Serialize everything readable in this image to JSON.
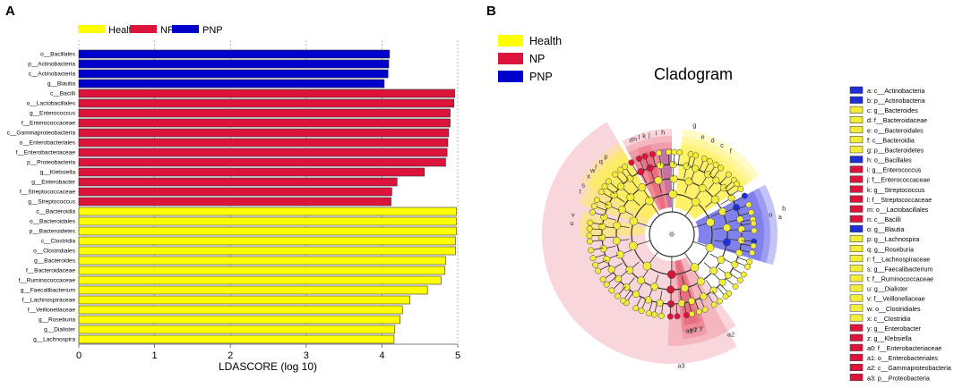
{
  "panel_a": {
    "label": "A"
  },
  "panel_b": {
    "label": "B"
  },
  "colors": {
    "Health": "#ffff00",
    "NP": "#dc143c",
    "PNP": "#0000cd"
  },
  "chart_data": [
    {
      "type": "bar",
      "orientation": "horizontal",
      "title": "",
      "xlabel": "LDASCORE (log 10)",
      "ylabel": "",
      "xlim": [
        0,
        5
      ],
      "xticks": [
        "0",
        "1",
        "2",
        "3",
        "4",
        "5"
      ],
      "grid": "vertical dashed",
      "legend": [
        {
          "name": "Health",
          "color": "#ffff00"
        },
        {
          "name": "NP",
          "color": "#dc143c"
        },
        {
          "name": "PNP",
          "color": "#0000cd"
        }
      ],
      "bars": [
        {
          "label": "o__Bacillales",
          "value": 4.1,
          "group": "PNP"
        },
        {
          "label": "p__Actinobacteria",
          "value": 4.09,
          "group": "PNP"
        },
        {
          "label": "c__Actinobacteria",
          "value": 4.08,
          "group": "PNP"
        },
        {
          "label": "g__Blautia",
          "value": 4.03,
          "group": "PNP"
        },
        {
          "label": "c__Bacilli",
          "value": 4.96,
          "group": "NP"
        },
        {
          "label": "o__Lactobacillales",
          "value": 4.95,
          "group": "NP"
        },
        {
          "label": "g__Enterococcus",
          "value": 4.9,
          "group": "NP"
        },
        {
          "label": "f__Enterococcaceae",
          "value": 4.9,
          "group": "NP"
        },
        {
          "label": "c__Gammaproteobacteria",
          "value": 4.88,
          "group": "NP"
        },
        {
          "label": "o__Enterobacteriales",
          "value": 4.87,
          "group": "NP"
        },
        {
          "label": "f__Enterobacteriaceae",
          "value": 4.86,
          "group": "NP"
        },
        {
          "label": "p__Proteobacteria",
          "value": 4.84,
          "group": "NP"
        },
        {
          "label": "g__Klebsiella",
          "value": 4.56,
          "group": "NP"
        },
        {
          "label": "g__Enterobacter",
          "value": 4.2,
          "group": "NP"
        },
        {
          "label": "f__Streptococcaceae",
          "value": 4.13,
          "group": "NP"
        },
        {
          "label": "g__Streptococcus",
          "value": 4.12,
          "group": "NP"
        },
        {
          "label": "c__Bacteroidia",
          "value": 4.98,
          "group": "Health"
        },
        {
          "label": "o__Bacteroidales",
          "value": 4.98,
          "group": "Health"
        },
        {
          "label": "p__Bacteroidetes",
          "value": 4.98,
          "group": "Health"
        },
        {
          "label": "c__Clostridia",
          "value": 4.97,
          "group": "Health"
        },
        {
          "label": "o__Clostridiales",
          "value": 4.97,
          "group": "Health"
        },
        {
          "label": "g__Bacteroides",
          "value": 4.84,
          "group": "Health"
        },
        {
          "label": "f__Bacteroidaceae",
          "value": 4.83,
          "group": "Health"
        },
        {
          "label": "f__Ruminococcaceae",
          "value": 4.78,
          "group": "Health"
        },
        {
          "label": "g__Faecalibacterium",
          "value": 4.6,
          "group": "Health"
        },
        {
          "label": "f__Lachnospiraceae",
          "value": 4.37,
          "group": "Health"
        },
        {
          "label": "f__Veillonellaceae",
          "value": 4.27,
          "group": "Health"
        },
        {
          "label": "g__Roseburia",
          "value": 4.24,
          "group": "Health"
        },
        {
          "label": "g__Dialister",
          "value": 4.17,
          "group": "Health"
        },
        {
          "label": "g__Lachnospira",
          "value": 4.16,
          "group": "Health"
        }
      ]
    },
    {
      "type": "cladogram",
      "title": "Cladogram",
      "legend": [
        {
          "name": "Health",
          "color": "#ffff00"
        },
        {
          "name": "NP",
          "color": "#dc143c"
        },
        {
          "name": "PNP",
          "color": "#0000cd"
        }
      ],
      "sectors": [
        {
          "key": "a",
          "group": "PNP",
          "start_deg": 62,
          "end_deg": 107
        },
        {
          "key": "b",
          "group": "PNP",
          "start_deg": 62,
          "end_deg": 107
        },
        {
          "key": "c",
          "group": "Health",
          "start_deg": 6,
          "end_deg": 56
        },
        {
          "key": "d",
          "group": "Health",
          "start_deg": 6,
          "end_deg": 56
        },
        {
          "key": "e",
          "group": "Health",
          "start_deg": 6,
          "end_deg": 56
        },
        {
          "key": "f",
          "group": "Health",
          "start_deg": 6,
          "end_deg": 56
        },
        {
          "key": "g",
          "group": "Health",
          "start_deg": 6,
          "end_deg": 56
        },
        {
          "key": "h",
          "group": "PNP",
          "start_deg": -8,
          "end_deg": 0
        },
        {
          "key": "i",
          "group": "NP",
          "start_deg": -28,
          "end_deg": 0
        },
        {
          "key": "j",
          "group": "NP",
          "start_deg": -28,
          "end_deg": 0
        },
        {
          "key": "k",
          "group": "NP",
          "start_deg": -22,
          "end_deg": -13
        },
        {
          "key": "l",
          "group": "NP",
          "start_deg": -22,
          "end_deg": -13
        },
        {
          "key": "m",
          "group": "NP",
          "start_deg": -28,
          "end_deg": 0
        },
        {
          "key": "n",
          "group": "NP",
          "start_deg": -28,
          "end_deg": 0
        },
        {
          "key": "o",
          "group": "PNP",
          "start_deg": 62,
          "end_deg": 107
        },
        {
          "key": "p",
          "group": "Health",
          "start_deg": -56,
          "end_deg": -30
        },
        {
          "key": "q",
          "group": "Health",
          "start_deg": -56,
          "end_deg": -30
        },
        {
          "key": "r",
          "group": "Health",
          "start_deg": -56,
          "end_deg": -30
        },
        {
          "key": "s",
          "group": "Health",
          "start_deg": -72,
          "end_deg": -56
        },
        {
          "key": "t",
          "group": "Health",
          "start_deg": -72,
          "end_deg": -56
        },
        {
          "key": "u",
          "group": "Health",
          "start_deg": -92,
          "end_deg": -76
        },
        {
          "key": "v",
          "group": "Health",
          "start_deg": -92,
          "end_deg": -76
        },
        {
          "key": "w",
          "group": "Health",
          "start_deg": -60,
          "end_deg": -30
        },
        {
          "key": "x",
          "group": "Health",
          "start_deg": -60,
          "end_deg": -30
        },
        {
          "key": "y",
          "group": "NP",
          "start_deg": 162,
          "end_deg": 172
        },
        {
          "key": "z",
          "group": "NP",
          "start_deg": 164,
          "end_deg": 172
        },
        {
          "key": "a0",
          "group": "NP",
          "start_deg": 160,
          "end_deg": 174
        },
        {
          "key": "a1",
          "group": "NP",
          "start_deg": 160,
          "end_deg": 174
        },
        {
          "key": "a2",
          "group": "NP",
          "start_deg": 145,
          "end_deg": 182
        },
        {
          "key": "a3",
          "group": "NP",
          "start_deg": 150,
          "end_deg": 330
        }
      ],
      "outer_labels": [
        "a",
        "b",
        "c",
        "d",
        "e",
        "f",
        "g",
        "h",
        "i",
        "j",
        "k",
        "l",
        "m",
        "n",
        "o",
        "p",
        "q",
        "r",
        "s",
        "t",
        "u",
        "v",
        "w",
        "x",
        "y",
        "z",
        "a0",
        "a1",
        "a2",
        "a3"
      ],
      "key": [
        {
          "text": "a: c__Actinobacteria",
          "group": "PNP"
        },
        {
          "text": "b: p__Actinobacteria",
          "group": "PNP"
        },
        {
          "text": "c: g__Bacteroides",
          "group": "Health"
        },
        {
          "text": "d: f__Bacteroidaceae",
          "group": "Health"
        },
        {
          "text": "e: o__Bacteroidales",
          "group": "Health"
        },
        {
          "text": "f: c__Bacteroidia",
          "group": "Health"
        },
        {
          "text": "g: p__Bacteroidetes",
          "group": "Health"
        },
        {
          "text": "h: o__Bacillales",
          "group": "PNP"
        },
        {
          "text": "i: g__Enterococcus",
          "group": "NP"
        },
        {
          "text": "j: f__Enterococcaceae",
          "group": "NP"
        },
        {
          "text": "k: g__Streptococcus",
          "group": "NP"
        },
        {
          "text": "l: f__Streptococcaceae",
          "group": "NP"
        },
        {
          "text": "m: o__Lactobacillales",
          "group": "NP"
        },
        {
          "text": "n: c__Bacilli",
          "group": "NP"
        },
        {
          "text": "o: g__Blautia",
          "group": "PNP"
        },
        {
          "text": "p: g__Lachnospira",
          "group": "Health"
        },
        {
          "text": "q: g__Roseburia",
          "group": "Health"
        },
        {
          "text": "r: f__Lachnospiraceae",
          "group": "Health"
        },
        {
          "text": "s: g__Faecalibacterium",
          "group": "Health"
        },
        {
          "text": "t: f__Ruminococcaceae",
          "group": "Health"
        },
        {
          "text": "u: g__Dialister",
          "group": "Health"
        },
        {
          "text": "v: f__Veillonellaceae",
          "group": "Health"
        },
        {
          "text": "w: o__Clostridiales",
          "group": "Health"
        },
        {
          "text": "x: c__Clostridia",
          "group": "Health"
        },
        {
          "text": "y: g__Enterobacter",
          "group": "NP"
        },
        {
          "text": "z: g__Klebsiella",
          "group": "NP"
        },
        {
          "text": "a0: f__Enterobacteriaceae",
          "group": "NP"
        },
        {
          "text": "a1: o__Enterobacteriales",
          "group": "NP"
        },
        {
          "text": "a2: c__Gammaproteobacteria",
          "group": "NP"
        },
        {
          "text": "a3: p__Proteobacteria",
          "group": "NP"
        }
      ]
    }
  ]
}
